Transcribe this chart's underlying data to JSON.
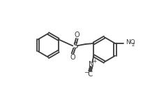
{
  "bg_color": "#ffffff",
  "line_color": "#3a3a3a",
  "line_width": 1.3,
  "fig_width": 2.38,
  "fig_height": 1.6,
  "dpi": 100,
  "xlim": [
    0,
    10
  ],
  "ylim": [
    0,
    6.72
  ]
}
